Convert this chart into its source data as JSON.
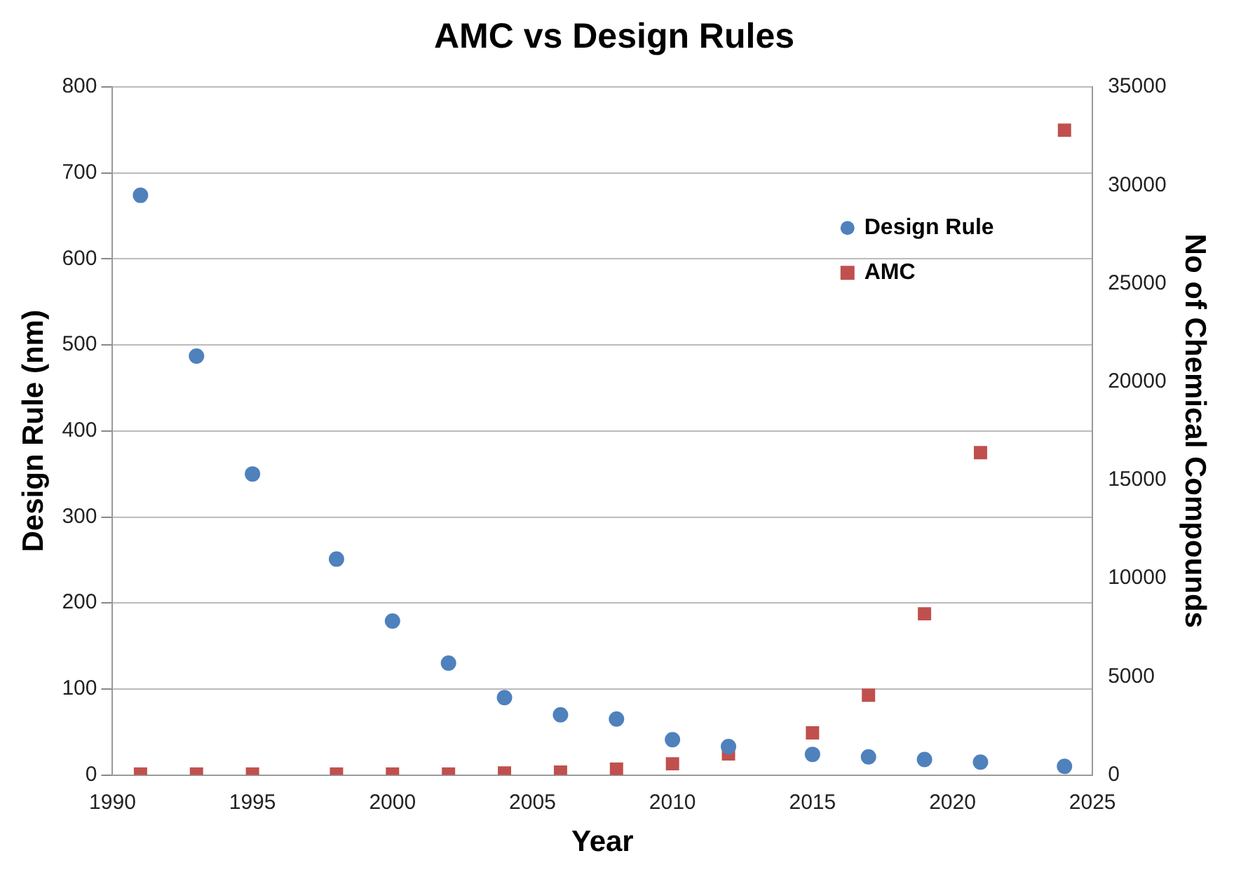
{
  "chart_data": {
    "type": "scatter",
    "title": "AMC vs Design Rules",
    "xlabel": "Year",
    "ylabel": "Design Rule (nm)",
    "y2label": "No of Chemical Compounds",
    "x": [
      1991,
      1993,
      1995,
      1998,
      2000,
      2002,
      2004,
      2006,
      2008,
      2010,
      2012,
      2015,
      2017,
      2019,
      2021,
      2024
    ],
    "series": [
      {
        "name": "Design Rule",
        "color": "#4f81bd",
        "marker": "circle",
        "values": [
          674,
          487,
          350,
          251,
          179,
          130,
          90,
          70,
          65,
          41,
          33,
          24,
          21,
          18,
          15,
          10
        ]
      },
      {
        "name": "AMC",
        "color": "#c0504d",
        "marker": "square",
        "axis": "y2",
        "values": [
          50,
          50,
          50,
          50,
          50,
          50,
          100,
          150,
          300,
          570,
          1070,
          2140,
          4060,
          8200,
          16400,
          32800
        ]
      }
    ],
    "xlim": [
      1990,
      2025
    ],
    "xticks": [
      1990,
      1995,
      2000,
      2005,
      2010,
      2015,
      2020,
      2025
    ],
    "ylim": [
      0,
      800
    ],
    "yticks": [
      0,
      100,
      200,
      300,
      400,
      500,
      600,
      700,
      800
    ],
    "y2lim": [
      0,
      35000
    ],
    "y2ticks": [
      0,
      5000,
      10000,
      15000,
      20000,
      25000,
      30000,
      35000
    ],
    "grid": "y",
    "legend": "top right"
  }
}
